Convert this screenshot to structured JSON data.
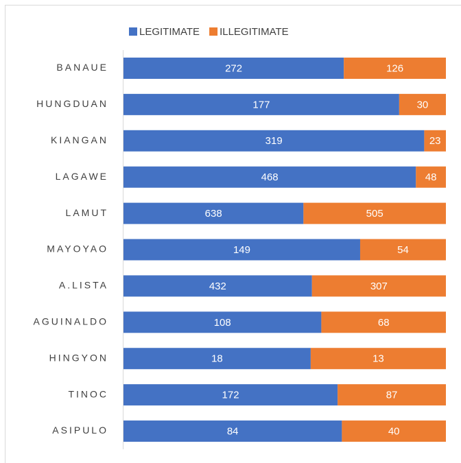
{
  "chart_data": {
    "type": "bar",
    "orientation": "horizontal",
    "stack": "percent",
    "categories": [
      "BANAUE",
      "HUNGDUAN",
      "KIANGAN",
      "LAGAWE",
      "LAMUT",
      "MAYOYAO",
      "A.LISTA",
      "AGUINALDO",
      "HINGYON",
      "TINOC",
      "ASIPULO"
    ],
    "series": [
      {
        "name": "LEGITIMATE",
        "color": "#4472c4",
        "values": [
          272,
          177,
          319,
          468,
          638,
          149,
          432,
          108,
          18,
          172,
          84
        ]
      },
      {
        "name": "ILLEGITIMATE",
        "color": "#ed7d31",
        "values": [
          126,
          30,
          23,
          48,
          505,
          54,
          307,
          68,
          13,
          87,
          40
        ]
      }
    ],
    "legend": "top"
  }
}
